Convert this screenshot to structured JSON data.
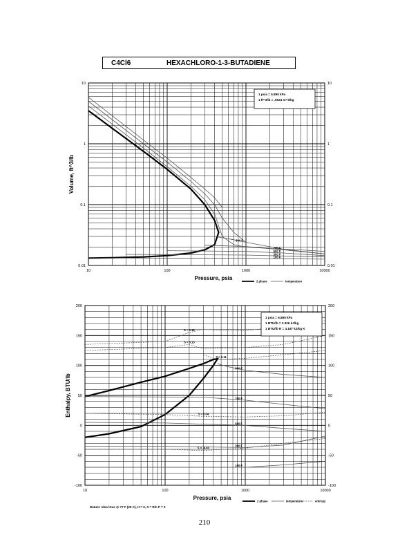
{
  "title": {
    "formula": "C4Cl6",
    "name": "HEXACHLORO-1-3-BUTADIENE"
  },
  "page_number": "210",
  "datum_note": "Datum: Ideal Gas @ 77 F (25 C), H = 0, S = Rln P = 0",
  "colors": {
    "line": "#000000",
    "grid": "#000000",
    "thin": "#555555",
    "background": "#ffffff"
  },
  "chart_data": [
    {
      "type": "line",
      "id": "volume",
      "xscale": "log",
      "yscale": "log",
      "xlim": [
        10,
        10000
      ],
      "ylim": [
        0.01,
        10
      ],
      "grid": true,
      "xlabel": "Pressure,  psia",
      "ylabel": "Volume, ft^3/lb",
      "x_ticks": [
        "10",
        "100",
        "1000",
        "10000"
      ],
      "y_ticks": [
        "0.01",
        "0.1",
        "1",
        "10"
      ],
      "y_ticks_right": [
        "0.01",
        "0.1",
        "1",
        "10"
      ],
      "info_box": [
        "1 psia = 6.895 kPa",
        "1 ft^3/lb = .0624 m^3/kg"
      ],
      "legend": [
        "2 phase",
        "temperature"
      ],
      "series": [
        {
          "name": "2 phase",
          "style": "thick",
          "x": [
            10,
            20,
            50,
            100,
            200,
            300,
            400,
            450,
            400,
            300,
            200,
            100,
            50,
            20,
            10
          ],
          "y": [
            3.5,
            1.8,
            0.75,
            0.38,
            0.18,
            0.1,
            0.055,
            0.035,
            0.022,
            0.018,
            0.016,
            0.0145,
            0.0138,
            0.0134,
            0.0132
          ]
        },
        {
          "name": "temperature",
          "style": "thin",
          "x": [
            10,
            20,
            50,
            100,
            200,
            300,
            400,
            500,
            700,
            1000,
            2000,
            5000,
            10000
          ],
          "y": [
            4.2,
            2.1,
            0.85,
            0.42,
            0.2,
            0.12,
            0.07,
            0.03,
            0.022,
            0.02,
            0.019,
            0.018,
            0.017
          ]
        },
        {
          "name": "temperature",
          "style": "thin",
          "x": [
            10,
            20,
            50,
            100,
            200,
            300,
            400,
            500,
            700,
            1000
          ],
          "y": [
            5.0,
            2.5,
            1.0,
            0.5,
            0.24,
            0.15,
            0.1,
            0.06,
            0.035,
            0.024
          ]
        },
        {
          "name": "temperature",
          "style": "thin",
          "x": [
            10,
            20,
            50,
            100,
            200,
            300,
            400,
            500
          ],
          "y": [
            5.8,
            2.9,
            1.15,
            0.58,
            0.28,
            0.18,
            0.13,
            0.09
          ]
        }
      ],
      "isotherms": [
        {
          "label": "800 F",
          "x": [
            400,
            700,
            1000,
            3000,
            10000
          ],
          "y": [
            0.03,
            0.0265,
            0.024,
            0.0185,
            0.0155
          ]
        },
        {
          "label": "700 F",
          "x": [
            300,
            1000,
            3000,
            10000
          ],
          "y": [
            0.0215,
            0.0205,
            0.018,
            0.0155
          ]
        },
        {
          "label": "500 F",
          "x": [
            100,
            1000,
            3000,
            10000
          ],
          "y": [
            0.0175,
            0.017,
            0.016,
            0.0145
          ]
        },
        {
          "label": "300 F",
          "x": [
            30,
            1000,
            3000,
            10000
          ],
          "y": [
            0.0152,
            0.0148,
            0.0143,
            0.0138
          ]
        },
        {
          "label": "100 F",
          "x": [
            10,
            1000,
            3000,
            10000
          ],
          "y": [
            0.0133,
            0.0131,
            0.0129,
            0.0127
          ]
        }
      ]
    },
    {
      "type": "line",
      "id": "enthalpy",
      "xscale": "log",
      "yscale": "linear",
      "xlim": [
        10,
        10000
      ],
      "ylim": [
        -100,
        200
      ],
      "grid": true,
      "xlabel": "Pressure,  psia",
      "ylabel": "Enthalpy, BTU/lb",
      "x_ticks": [
        "10",
        "100",
        "1000",
        "10000"
      ],
      "y_ticks": [
        "-100",
        "-50",
        "0",
        "50",
        "100",
        "150",
        "200"
      ],
      "y_ticks_right": [
        "-100",
        "-50",
        "0",
        "50",
        "100",
        "150",
        "200"
      ],
      "info_box": [
        "1 psia = 6.895 kPa",
        "1 BTU/lb = 2.326 kJ/kg",
        "1 BTU/lb R = 4.187 kJ/kg K"
      ],
      "legend": [
        "2 phase",
        "temperature",
        "entropy"
      ],
      "series": [
        {
          "name": "2 phase",
          "style": "thick",
          "x": [
            10,
            20,
            50,
            100,
            200,
            300,
            400,
            450,
            400,
            300,
            200,
            100,
            50,
            20,
            10
          ],
          "y": [
            48,
            58,
            72,
            82,
            95,
            103,
            110,
            111,
            100,
            78,
            50,
            18,
            -2,
            -14,
            -20
          ]
        }
      ],
      "isotherms": [
        {
          "label": "800 F",
          "x": [
            450,
            600,
            1000,
            3000,
            10000
          ],
          "y": [
            103,
            98,
            92,
            85,
            80
          ]
        },
        {
          "label": "700 F",
          "x": [
            10,
            300,
            1000,
            3000,
            10000
          ],
          "y": [
            48,
            47,
            42,
            35,
            28
          ]
        },
        {
          "label": "500 F",
          "x": [
            10,
            100,
            1000,
            3000,
            10000
          ],
          "y": [
            5,
            4,
            0,
            -5,
            -10
          ]
        },
        {
          "label": "300 F",
          "x": [
            10,
            100,
            1000,
            3000,
            10000
          ],
          "y": [
            -35,
            -35,
            -37,
            -33,
            -18
          ]
        },
        {
          "label": "100 F",
          "x": [
            10,
            100,
            1000,
            3000,
            10000
          ],
          "y": [
            -70,
            -70,
            -70,
            -66,
            -60
          ]
        }
      ],
      "entropy_lines": [
        {
          "label": "S = 0.15",
          "x": [
            10,
            100,
            200,
            300,
            1000,
            3000,
            10000
          ],
          "y": [
            135,
            140,
            155,
            160,
            158,
            165,
            175
          ]
        },
        {
          "label": "S = 0.13",
          "x": [
            10,
            100,
            200,
            300,
            1000,
            3000,
            10000
          ],
          "y": [
            125,
            130,
            135,
            128,
            130,
            135,
            150
          ]
        },
        {
          "label": "S = 0.11",
          "x": [
            300,
            400,
            500,
            1000,
            3000,
            10000
          ],
          "y": [
            118,
            112,
            110,
            112,
            118,
            125
          ]
        },
        {
          "label": "S = 0.04",
          "x": [
            10,
            100,
            300,
            1000,
            3000,
            10000
          ],
          "y": [
            20,
            18,
            15,
            14,
            16,
            22
          ]
        },
        {
          "label": "S = -0.03",
          "x": [
            10,
            100,
            300,
            1000,
            3000,
            10000
          ],
          "y": [
            -40,
            -40,
            -42,
            -38,
            -30,
            -22
          ]
        }
      ]
    }
  ]
}
